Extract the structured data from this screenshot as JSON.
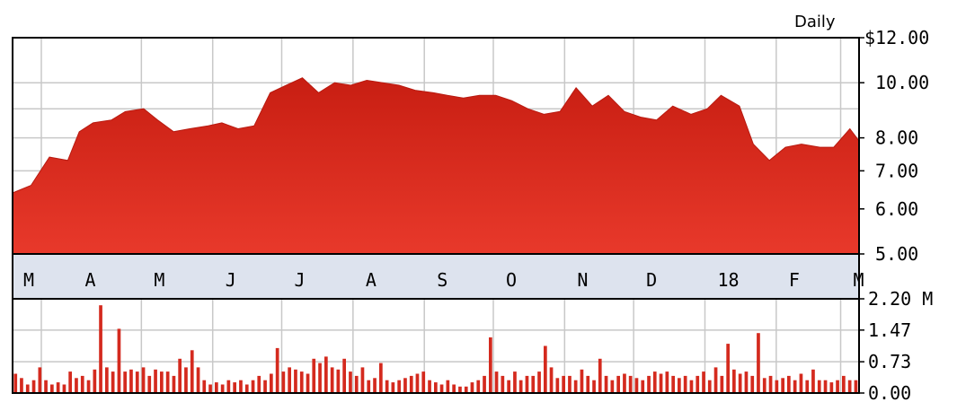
{
  "chart_data": [
    {
      "type": "area",
      "title": "",
      "period_label": "Daily",
      "scale": "log",
      "ylim": [
        5.0,
        12.0
      ],
      "y_ticks": [
        {
          "value": 12.0,
          "label": "$12.00"
        },
        {
          "value": 10.0,
          "label": "10.00"
        },
        {
          "value": 8.0,
          "label": "8.00"
        },
        {
          "value": 7.0,
          "label": "7.00"
        },
        {
          "value": 6.0,
          "label": "6.00"
        },
        {
          "value": 5.0,
          "label": "5.00"
        }
      ],
      "x_labels": [
        "M",
        "A",
        "M",
        "J",
        "J",
        "A",
        "S",
        "O",
        "N",
        "D",
        "18",
        "F",
        "M"
      ],
      "grid": true,
      "fill_color": "#d42a1e",
      "series": [
        {
          "x": [
            "2017-03-06",
            "2017-03-14",
            "2017-03-22",
            "2017-03-30",
            "2017-04-04",
            "2017-04-10",
            "2017-04-18",
            "2017-04-24",
            "2017-05-02",
            "2017-05-08",
            "2017-05-15",
            "2017-05-22",
            "2017-05-30",
            "2017-06-05",
            "2017-06-12",
            "2017-06-19",
            "2017-06-26",
            "2017-07-03",
            "2017-07-10",
            "2017-07-17",
            "2017-07-24",
            "2017-07-31",
            "2017-08-07",
            "2017-08-14",
            "2017-08-21",
            "2017-08-28",
            "2017-09-05",
            "2017-09-11",
            "2017-09-18",
            "2017-09-25",
            "2017-10-02",
            "2017-10-09",
            "2017-10-16",
            "2017-10-23",
            "2017-10-30",
            "2017-11-06",
            "2017-11-13",
            "2017-11-20",
            "2017-11-27",
            "2017-12-04",
            "2017-12-11",
            "2017-12-18",
            "2017-12-26",
            "2018-01-02",
            "2018-01-08",
            "2018-01-16",
            "2018-01-22",
            "2018-01-29",
            "2018-02-05",
            "2018-02-12",
            "2018-02-20",
            "2018-02-26",
            "2018-03-05",
            "2018-03-09"
          ],
          "values": [
            6.4,
            6.6,
            7.4,
            7.3,
            8.2,
            8.5,
            8.6,
            8.9,
            9.0,
            8.6,
            8.2,
            8.3,
            8.4,
            8.5,
            8.3,
            8.4,
            9.6,
            9.9,
            10.2,
            9.6,
            10.0,
            9.9,
            10.1,
            10.0,
            9.9,
            9.7,
            9.6,
            9.5,
            9.4,
            9.5,
            9.5,
            9.3,
            9.0,
            8.8,
            8.9,
            9.8,
            9.1,
            9.5,
            8.9,
            8.7,
            8.6,
            9.1,
            8.8,
            9.0,
            9.5,
            9.1,
            7.8,
            7.3,
            7.7,
            7.8,
            7.7,
            7.7,
            8.3,
            7.9
          ]
        }
      ]
    },
    {
      "type": "bar",
      "title": "",
      "ylim": [
        0,
        2.2
      ],
      "y_ticks": [
        {
          "value": 2.2,
          "label": "2.20 M"
        },
        {
          "value": 1.47,
          "label": "1.47"
        },
        {
          "value": 0.73,
          "label": "0.73"
        },
        {
          "value": 0.0,
          "label": "0.00"
        }
      ],
      "grid": true,
      "bar_color": "#d42a1e",
      "series": [
        {
          "name": "",
          "values": [
            0.45,
            0.35,
            0.2,
            0.3,
            0.6,
            0.3,
            0.2,
            0.25,
            0.2,
            0.5,
            0.35,
            0.4,
            0.3,
            0.55,
            2.05,
            0.6,
            0.5,
            1.5,
            0.5,
            0.55,
            0.5,
            0.6,
            0.4,
            0.55,
            0.5,
            0.5,
            0.4,
            0.8,
            0.6,
            1.0,
            0.6,
            0.3,
            0.2,
            0.25,
            0.2,
            0.3,
            0.25,
            0.3,
            0.2,
            0.3,
            0.4,
            0.3,
            0.45,
            1.05,
            0.5,
            0.6,
            0.55,
            0.5,
            0.45,
            0.8,
            0.7,
            0.85,
            0.6,
            0.55,
            0.8,
            0.5,
            0.4,
            0.6,
            0.3,
            0.35,
            0.7,
            0.3,
            0.25,
            0.3,
            0.35,
            0.4,
            0.45,
            0.5,
            0.3,
            0.25,
            0.2,
            0.3,
            0.2,
            0.15,
            0.15,
            0.25,
            0.3,
            0.4,
            1.3,
            0.5,
            0.4,
            0.3,
            0.5,
            0.3,
            0.4,
            0.4,
            0.5,
            1.1,
            0.6,
            0.35,
            0.4,
            0.4,
            0.3,
            0.55,
            0.4,
            0.3,
            0.8,
            0.4,
            0.3,
            0.4,
            0.45,
            0.4,
            0.35,
            0.3,
            0.4,
            0.5,
            0.45,
            0.5,
            0.4,
            0.35,
            0.4,
            0.3,
            0.4,
            0.5,
            0.3,
            0.6,
            0.4,
            1.15,
            0.55,
            0.45,
            0.5,
            0.4,
            1.4,
            0.35,
            0.4,
            0.3,
            0.35,
            0.4,
            0.3,
            0.45,
            0.3,
            0.55,
            0.3,
            0.3,
            0.25,
            0.3,
            0.4,
            0.3,
            0.3
          ]
        }
      ]
    }
  ]
}
